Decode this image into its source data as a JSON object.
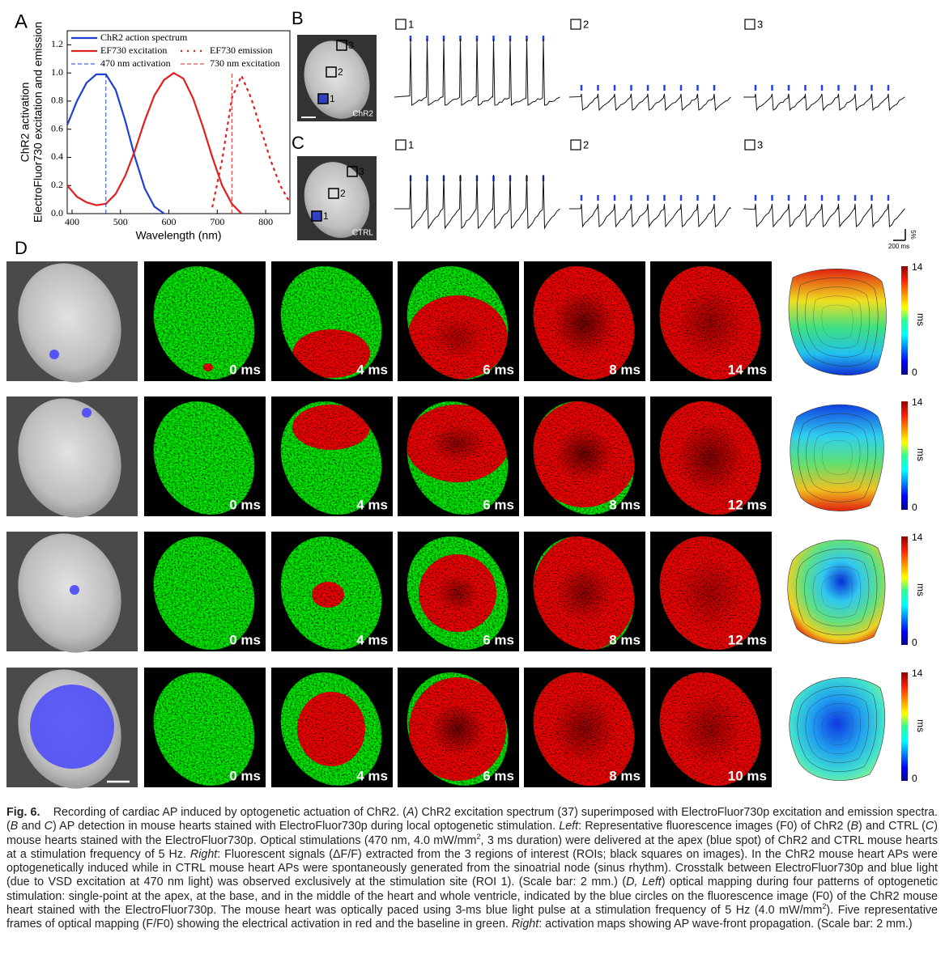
{
  "chart_data": {
    "type": "line",
    "ylabel": [
      "ChR2 activation",
      "ElectroFluor730 excitation and emission"
    ],
    "xlabel": "Wavelength (nm)",
    "x": [
      390,
      410,
      430,
      450,
      470,
      490,
      510,
      530,
      550,
      570,
      590,
      610,
      630,
      650,
      670,
      690,
      710,
      730,
      750,
      770,
      790,
      810,
      830,
      850
    ],
    "xlim": [
      390,
      850
    ],
    "xticks": [
      400,
      500,
      600,
      700,
      800
    ],
    "ylim": [
      0,
      1.3
    ],
    "yticks": [
      {
        "value": 0,
        "label": "0.0"
      },
      0.2,
      0.4,
      0.6,
      0.8,
      {
        "value": 1,
        "label": "1.0"
      },
      1.2
    ],
    "legend": "top",
    "series": [
      {
        "name": "ChR2 action spectrum",
        "color": "#1f3fd6",
        "style": "solid",
        "values": [
          0.63,
          0.8,
          0.93,
          0.99,
          0.99,
          0.88,
          0.66,
          0.4,
          0.18,
          0.05,
          0.0,
          null,
          null,
          null,
          null,
          null,
          null,
          null,
          null,
          null,
          null,
          null,
          null,
          null
        ]
      },
      {
        "name": "EF730 excitation",
        "color": "#e02020",
        "style": "solid",
        "values": [
          0.2,
          0.12,
          0.08,
          0.06,
          0.07,
          0.14,
          0.27,
          0.45,
          0.66,
          0.84,
          0.95,
          1.0,
          0.96,
          0.82,
          0.62,
          0.4,
          0.2,
          0.07,
          0.0,
          null,
          null,
          null,
          null,
          null
        ]
      },
      {
        "name": "EF730 emission",
        "color": "#e02020",
        "style": "dotted",
        "values": [
          null,
          null,
          null,
          null,
          null,
          null,
          null,
          null,
          null,
          null,
          null,
          null,
          null,
          null,
          null,
          0.05,
          0.38,
          0.82,
          0.98,
          0.82,
          0.6,
          0.38,
          0.2,
          0.08
        ]
      },
      {
        "name": "470 nm activation",
        "color": "#1f3fd6",
        "style": "dashed",
        "x": [
          470,
          470
        ],
        "values": [
          0,
          1.0
        ]
      },
      {
        "name": "730 nm excitation",
        "color": "#e02020",
        "style": "dashed",
        "x": [
          730,
          730
        ],
        "values": [
          0,
          1.0
        ]
      }
    ]
  },
  "panel_labels": [
    "A",
    "B",
    "C",
    "D"
  ],
  "roi_labels": [
    "1",
    "2",
    "3"
  ],
  "heart_labels": [
    "ChR2",
    "CTRL"
  ],
  "trace_scale": {
    "amplitude": "5%",
    "time": "200 ms"
  },
  "mapping": {
    "frame_times": [
      [
        "0 ms",
        "4 ms",
        "6 ms",
        "8 ms",
        "14 ms"
      ],
      [
        "0 ms",
        "4 ms",
        "6 ms",
        "8 ms",
        "12 ms"
      ],
      [
        "0 ms",
        "4 ms",
        "6 ms",
        "8 ms",
        "12 ms"
      ],
      [
        "0 ms",
        "4 ms",
        "6 ms",
        "8 ms",
        "10 ms"
      ]
    ],
    "colorbar": {
      "max": "14",
      "min": "0",
      "unit": "ms"
    }
  },
  "caption": [
    {
      "text": "Fig. 6.",
      "style": "b"
    },
    {
      "text": "    Recording of cardiac AP induced by optogenetic actuation of ChR2. ("
    },
    {
      "text": "A",
      "style": "i"
    },
    {
      "text": ") ChR2 excitation spectrum (37) superimposed with ElectroFluor730p excitation and emission spectra. ("
    },
    {
      "text": "B",
      "style": "i"
    },
    {
      "text": " and "
    },
    {
      "text": "C",
      "style": "i"
    },
    {
      "text": ") AP detection in mouse hearts stained with ElectroFluor730p during local optogenetic stimulation. "
    },
    {
      "text": "Left",
      "style": "i"
    },
    {
      "text": ": Representative fluorescence images (F0) of ChR2 ("
    },
    {
      "text": "B",
      "style": "i"
    },
    {
      "text": ") and CTRL ("
    },
    {
      "text": "C",
      "style": "i"
    },
    {
      "text": ") mouse hearts stained with the ElectroFluor730p. Optical stimulations (470 nm, 4.0 mW/mm"
    },
    {
      "text": "2",
      "style": "sup"
    },
    {
      "text": ", 3 ms duration) were delivered at the apex (blue spot) of ChR2 and CTRL mouse hearts at a stimulation frequency of 5 Hz. "
    },
    {
      "text": "Right",
      "style": "i"
    },
    {
      "text": ": Fluorescent signals (ΔF/F) extracted from the 3 regions of interest (ROIs; black squares on images). In the ChR2 mouse heart APs were optogenetically induced while in CTRL mouse heart APs were spontaneously generated from the sinoatrial node (sinus rhythm). Crosstalk between ElectroFluor730p and blue light (due to VSD excitation at 470 nm light) was observed exclusively at the stimulation site (ROI 1). (Scale bar: 2 mm.) ("
    },
    {
      "text": "D, Left",
      "style": "i"
    },
    {
      "text": ") optical mapping during four patterns of optogenetic stimulation: single-point at the apex, at the base, and in the middle of the heart and whole ventricle, indicated by the blue circles on the fluorescence image (F0) of the ChR2 mouse heart stained with the ElectroFluor730p. The mouse heart was optically paced using 3-ms blue light pulse at a stimulation frequency of 5 Hz (4.0 mW/mm"
    },
    {
      "text": "2",
      "style": "sup"
    },
    {
      "text": "). Five representative frames of optical mapping (F/F0) showing the electrical activation in red and the baseline in green. "
    },
    {
      "text": "Right",
      "style": "i"
    },
    {
      "text": ": activation maps showing AP wave-front propagation. (Scale bar: 2 mm.)"
    }
  ]
}
